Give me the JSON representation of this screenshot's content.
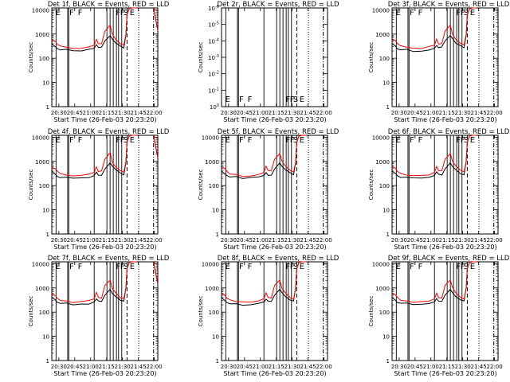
{
  "chart_data": [
    {
      "type": "line",
      "title": "Det 1f, BLACK = Events, RED = LLD",
      "ylabel": "Counts/sec",
      "xlabel": "Start Time (26-Feb-03 20:23:20)",
      "x_ticks": [
        "20:30",
        "20:45",
        "21:00",
        "21:15",
        "21:30",
        "21:45",
        "22:00"
      ],
      "y_ticks": [
        "1",
        "10",
        "100",
        "1000",
        "10000"
      ],
      "yscale": "log",
      "ylim": [
        1,
        12000
      ],
      "xlim_minutes": [
        "20:23:20",
        "22:03:20"
      ],
      "labels": [
        "E",
        "F",
        "F",
        "F",
        "F",
        "S",
        "E"
      ],
      "has_data": true,
      "series": [
        {
          "name": "BLACK = Events",
          "color": "#000000"
        },
        {
          "name": "RED = LLD",
          "color": "#ff0000"
        }
      ]
    },
    {
      "type": "line",
      "title": "Det 2r, BLACK = Events, RED = LLD",
      "ylabel": "Counts/sec",
      "xlabel": "Start Time (26-Feb-03 20:23:20)",
      "x_ticks": [
        "20:30",
        "20:45",
        "21:00",
        "21:15",
        "21:30",
        "21:45",
        "22:00"
      ],
      "y_ticks": [
        "10^-6",
        "10^-5",
        "10^-4",
        "10^-3",
        "10^-2",
        "10^-1",
        "10^0"
      ],
      "yscale": "log",
      "ylim": [
        1e-06,
        1
      ],
      "labels": [
        "E",
        "F",
        "F",
        "F",
        "F",
        "S",
        "E"
      ],
      "has_data": false,
      "series": []
    },
    {
      "type": "line",
      "title": "Det 3f, BLACK = Events, RED = LLD",
      "ylabel": "Counts/sec",
      "xlabel": "Start Time (26-Feb-03 20:23:20)",
      "x_ticks": [
        "20:30",
        "20:45",
        "21:00",
        "21:15",
        "21:30",
        "21:45",
        "22:00"
      ],
      "y_ticks": [
        "1",
        "10",
        "100",
        "1000",
        "10000"
      ],
      "yscale": "log",
      "ylim": [
        1,
        12000
      ],
      "labels": [
        "E",
        "F",
        "F",
        "F",
        "F",
        "S",
        "E"
      ],
      "has_data": true,
      "series": [
        {
          "name": "BLACK = Events",
          "color": "#000000"
        },
        {
          "name": "RED = LLD",
          "color": "#ff0000"
        }
      ]
    },
    {
      "type": "line",
      "title": "Det 4f, BLACK = Events, RED = LLD",
      "ylabel": "Counts/sec",
      "xlabel": "Start Time (26-Feb-03 20:23:20)",
      "x_ticks": [
        "20:30",
        "20:45",
        "21:00",
        "21:15",
        "21:30",
        "21:45",
        "22:00"
      ],
      "y_ticks": [
        "1",
        "10",
        "100",
        "1000",
        "10000"
      ],
      "yscale": "log",
      "ylim": [
        1,
        12000
      ],
      "labels": [
        "E",
        "F",
        "F",
        "F",
        "F",
        "S",
        "E"
      ],
      "has_data": true,
      "series": [
        {
          "name": "BLACK = Events",
          "color": "#000000"
        },
        {
          "name": "RED = LLD",
          "color": "#ff0000"
        }
      ]
    },
    {
      "type": "line",
      "title": "Det 5f, BLACK = Events, RED = LLD",
      "ylabel": "Counts/sec",
      "xlabel": "Start Time (26-Feb-03 20:23:20)",
      "x_ticks": [
        "20:30",
        "20:45",
        "21:00",
        "21:15",
        "21:30",
        "21:45",
        "22:00"
      ],
      "y_ticks": [
        "1",
        "10",
        "100",
        "1000",
        "10000"
      ],
      "yscale": "log",
      "ylim": [
        1,
        12000
      ],
      "labels": [
        "E",
        "F",
        "F",
        "F",
        "F",
        "S",
        "E"
      ],
      "has_data": true,
      "series": [
        {
          "name": "BLACK = Events",
          "color": "#000000"
        },
        {
          "name": "RED = LLD",
          "color": "#ff0000"
        }
      ]
    },
    {
      "type": "line",
      "title": "Det 6f, BLACK = Events, RED = LLD",
      "ylabel": "Counts/sec",
      "xlabel": "Start Time (26-Feb-03 20:23:20)",
      "x_ticks": [
        "20:30",
        "20:45",
        "21:00",
        "21:15",
        "21:30",
        "21:45",
        "22:00"
      ],
      "y_ticks": [
        "1",
        "10",
        "100",
        "1000",
        "10000"
      ],
      "yscale": "log",
      "ylim": [
        1,
        12000
      ],
      "labels": [
        "E",
        "F",
        "F",
        "F",
        "F",
        "S",
        "E"
      ],
      "has_data": true,
      "series": [
        {
          "name": "BLACK = Events",
          "color": "#000000"
        },
        {
          "name": "RED = LLD",
          "color": "#ff0000"
        }
      ]
    },
    {
      "type": "line",
      "title": "Det 7f, BLACK = Events, RED = LLD",
      "ylabel": "Counts/sec",
      "xlabel": "Start Time (26-Feb-03 20:23:20)",
      "x_ticks": [
        "20:30",
        "20:45",
        "21:00",
        "21:15",
        "21:30",
        "21:45",
        "22:00"
      ],
      "y_ticks": [
        "1",
        "10",
        "100",
        "1000",
        "10000"
      ],
      "yscale": "log",
      "ylim": [
        1,
        12000
      ],
      "labels": [
        "E",
        "F",
        "F",
        "F",
        "F",
        "S",
        "E"
      ],
      "has_data": true,
      "series": [
        {
          "name": "BLACK = Events",
          "color": "#000000"
        },
        {
          "name": "RED = LLD",
          "color": "#ff0000"
        }
      ]
    },
    {
      "type": "line",
      "title": "Det 8f, BLACK = Events, RED = LLD",
      "ylabel": "Counts/sec",
      "xlabel": "Start Time (26-Feb-03 20:23:20)",
      "x_ticks": [
        "20:30",
        "20:45",
        "21:00",
        "21:15",
        "21:30",
        "21:45",
        "22:00"
      ],
      "y_ticks": [
        "1",
        "10",
        "100",
        "1000",
        "10000"
      ],
      "yscale": "log",
      "ylim": [
        1,
        12000
      ],
      "labels": [
        "E",
        "F",
        "F",
        "F",
        "F",
        "S",
        "E"
      ],
      "has_data": true,
      "series": [
        {
          "name": "BLACK = Events",
          "color": "#000000"
        },
        {
          "name": "RED = LLD",
          "color": "#ff0000"
        }
      ]
    },
    {
      "type": "line",
      "title": "Det 9f, BLACK = Events, RED = LLD",
      "ylabel": "Counts/sec",
      "xlabel": "Start Time (26-Feb-03 20:23:20)",
      "x_ticks": [
        "20:30",
        "20:45",
        "21:00",
        "21:15",
        "21:30",
        "21:45",
        "22:00"
      ],
      "y_ticks": [
        "1",
        "10",
        "100",
        "1000",
        "10000"
      ],
      "yscale": "log",
      "ylim": [
        1,
        12000
      ],
      "labels": [
        "E",
        "F",
        "F",
        "F",
        "F",
        "S",
        "E"
      ],
      "has_data": true,
      "series": [
        {
          "name": "BLACK = Events",
          "color": "#000000"
        },
        {
          "name": "RED = LLD",
          "color": "#ff0000"
        }
      ]
    }
  ],
  "events": {
    "solid_lines_min": [
      4,
      15,
      16,
      40,
      52,
      55,
      58,
      61,
      63,
      66
    ],
    "dashed_line_min": 71,
    "dotted_line_min": 82,
    "dashdot_line_min": 96,
    "label_positions_min": [
      2,
      15,
      23,
      59,
      63,
      66,
      72
    ],
    "red_profile_log": [
      [
        0,
        2.75
      ],
      [
        3,
        2.72
      ],
      [
        5,
        2.6
      ],
      [
        8,
        2.5
      ],
      [
        14,
        2.45
      ],
      [
        20,
        2.4
      ],
      [
        28,
        2.42
      ],
      [
        35,
        2.47
      ],
      [
        40,
        2.55
      ],
      [
        42,
        2.8
      ],
      [
        44,
        2.6
      ],
      [
        47,
        2.6
      ],
      [
        50,
        3.1
      ],
      [
        55,
        3.35
      ],
      [
        57,
        3.0
      ],
      [
        60,
        2.8
      ],
      [
        65,
        2.6
      ],
      [
        68,
        2.55
      ],
      [
        70,
        3.0
      ],
      [
        71,
        3.8
      ],
      [
        73,
        4.05
      ],
      [
        76,
        4.1
      ],
      [
        80,
        4.1
      ]
    ],
    "black_profile_log": [
      [
        0,
        2.6
      ],
      [
        3,
        2.5
      ],
      [
        5,
        2.4
      ],
      [
        8,
        2.35
      ],
      [
        14,
        2.35
      ],
      [
        20,
        2.3
      ],
      [
        28,
        2.32
      ],
      [
        35,
        2.35
      ],
      [
        40,
        2.4
      ],
      [
        42,
        2.55
      ],
      [
        44,
        2.45
      ],
      [
        47,
        2.45
      ],
      [
        50,
        2.7
      ],
      [
        55,
        2.95
      ],
      [
        57,
        2.8
      ],
      [
        60,
        2.65
      ],
      [
        65,
        2.5
      ],
      [
        68,
        2.45
      ],
      [
        70,
        3.0
      ],
      [
        71,
        3.8
      ],
      [
        73,
        4.05
      ],
      [
        76,
        4.1
      ],
      [
        80,
        4.1
      ]
    ]
  }
}
